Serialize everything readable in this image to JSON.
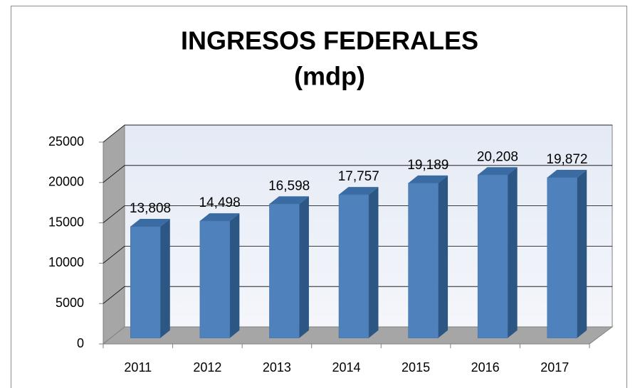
{
  "chart_data": {
    "type": "bar3d",
    "title": "INGRESOS FEDERALES",
    "subtitle": "(mdp)",
    "categories": [
      "2011",
      "2012",
      "2013",
      "2014",
      "2015",
      "2016",
      "2017"
    ],
    "values": [
      13808,
      14498,
      16598,
      17757,
      19189,
      20208,
      19872
    ],
    "value_labels": [
      "13,808",
      "14,498",
      "16,598",
      "17,757",
      "19,189",
      "20,208",
      "19,872"
    ],
    "color": "#4f81bd",
    "ylim": [
      0,
      25000
    ],
    "yticks": [
      0,
      5000,
      10000,
      15000,
      20000,
      25000
    ],
    "grid": true
  }
}
